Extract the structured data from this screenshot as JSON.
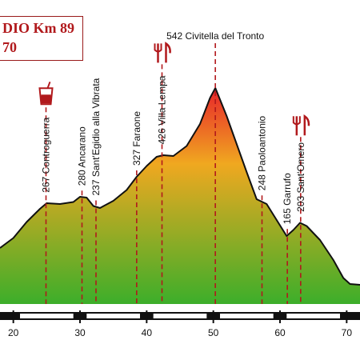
{
  "title": {
    "line1": "DIO Km 89",
    "line2": "70"
  },
  "colors": {
    "marker": "#b1191c",
    "outline": "#111111",
    "fill_top": "#e8242a",
    "fill_mid": "#f0a820",
    "fill_bottom": "#3cae2a",
    "title_text": "#b1191c"
  },
  "chart_data": {
    "type": "area",
    "x_unit": "km",
    "xlim": [
      18,
      72
    ],
    "ylim": [
      0,
      600
    ],
    "x_ticks": [
      20,
      30,
      40,
      50,
      60,
      70
    ],
    "profile": [
      [
        18,
        140
      ],
      [
        20,
        165
      ],
      [
        22,
        205
      ],
      [
        24,
        238
      ],
      [
        25,
        252
      ],
      [
        27,
        250
      ],
      [
        29,
        255
      ],
      [
        30,
        268
      ],
      [
        31,
        266
      ],
      [
        32,
        245
      ],
      [
        33,
        240
      ],
      [
        35,
        258
      ],
      [
        37,
        285
      ],
      [
        38.5,
        318
      ],
      [
        40,
        345
      ],
      [
        41.5,
        368
      ],
      [
        42.5,
        372
      ],
      [
        44,
        370
      ],
      [
        46,
        395
      ],
      [
        48,
        450
      ],
      [
        49.5,
        515
      ],
      [
        50.3,
        540
      ],
      [
        52,
        470
      ],
      [
        53.5,
        400
      ],
      [
        55,
        330
      ],
      [
        56.5,
        262
      ],
      [
        58,
        250
      ],
      [
        59.5,
        210
      ],
      [
        61,
        170
      ],
      [
        62,
        185
      ],
      [
        63,
        203
      ],
      [
        64,
        195
      ],
      [
        66,
        160
      ],
      [
        68,
        110
      ],
      [
        69.5,
        65
      ],
      [
        70.5,
        50
      ],
      [
        72,
        48
      ]
    ],
    "points": [
      {
        "km": 24.9,
        "elevation": 267,
        "label": "267 Controguerra",
        "icon": "drink-icon"
      },
      {
        "km": 30.3,
        "elevation": 280,
        "label": "280 Ancarano"
      },
      {
        "km": 32.4,
        "elevation": 237,
        "label": "237 Sant'Egidio alla Vibrata"
      },
      {
        "km": 38.5,
        "elevation": 327,
        "label": "327 Faraone"
      },
      {
        "km": 42.3,
        "elevation": 426,
        "label": "426 Villa Lempa",
        "icon": "fork-knife-icon"
      },
      {
        "km": 50.3,
        "elevation": 542,
        "label": "542 Civitella del Tronto"
      },
      {
        "km": 57.3,
        "elevation": 248,
        "label": "248 Paoloantonio"
      },
      {
        "km": 61.1,
        "elevation": 165,
        "label": "165 Garrufo"
      },
      {
        "km": 63.1,
        "elevation": 203,
        "label": "203 Sant'Omero",
        "icon": "fork-knife-icon"
      }
    ]
  }
}
